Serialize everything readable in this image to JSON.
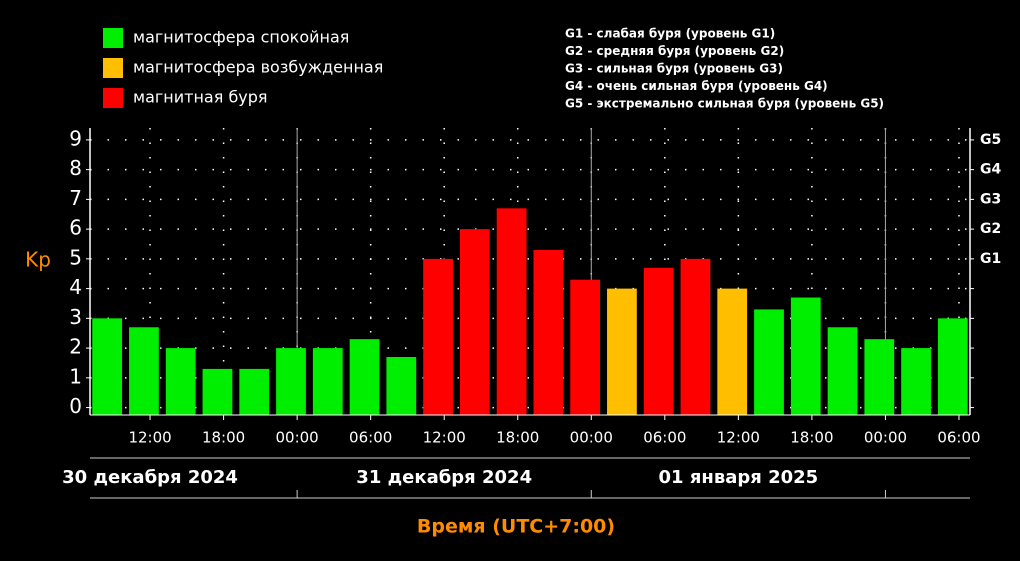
{
  "chart_data": {
    "type": "bar",
    "y_label": "Kp",
    "x_label": "Время (UTC+7:00)",
    "legend": [
      {
        "name": "магнитосфера спокойная",
        "color": "#00ee00"
      },
      {
        "name": "магнитосфера возбужденная",
        "color": "#ffbf00"
      },
      {
        "name": "магнитная буря",
        "color": "#ff0000"
      }
    ],
    "storm_levels": [
      "G1 - слабая буря (уровень G1)",
      "G2 - средняя буря (уровень G2)",
      "G3 - сильная буря (уровень G3)",
      "G4 - очень сильная буря (уровень G4)",
      "G5 - экстремально сильная буря (уровень G5)"
    ],
    "x": [
      -15.5,
      -12.5,
      -9.5,
      -6.5,
      -3.5,
      -0.5,
      2.5,
      5.5,
      8.5,
      11.5,
      14.5,
      17.5,
      20.5,
      23.5,
      26.5,
      29.5,
      32.5,
      35.5,
      38.5,
      41.5,
      44.5,
      47.5,
      50.5,
      53.5
    ],
    "values": [
      3,
      2.7,
      2,
      1.3,
      1.3,
      2,
      2,
      2.3,
      1.7,
      5,
      6,
      6.7,
      5.3,
      4.3,
      4,
      4.7,
      5,
      4,
      3.3,
      3.7,
      2.7,
      2.3,
      2,
      3
    ],
    "colors": [
      "#00ee00",
      "#00ee00",
      "#00ee00",
      "#00ee00",
      "#00ee00",
      "#00ee00",
      "#00ee00",
      "#00ee00",
      "#00ee00",
      "#ff0000",
      "#ff0000",
      "#ff0000",
      "#ff0000",
      "#ff0000",
      "#ffbf00",
      "#ff0000",
      "#ff0000",
      "#ffbf00",
      "#00ee00",
      "#00ee00",
      "#00ee00",
      "#00ee00",
      "#00ee00",
      "#00ee00"
    ],
    "xlim": [
      -16.9,
      54.9
    ],
    "xticks": [
      {
        "value": -12,
        "label": "12:00"
      },
      {
        "value": -6,
        "label": "18:00"
      },
      {
        "value": 0,
        "label": "00:00"
      },
      {
        "value": 6,
        "label": "06:00"
      },
      {
        "value": 12,
        "label": "12:00"
      },
      {
        "value": 18,
        "label": "18:00"
      },
      {
        "value": 24,
        "label": "00:00"
      },
      {
        "value": 30,
        "label": "06:00"
      },
      {
        "value": 36,
        "label": "12:00"
      },
      {
        "value": 42,
        "label": "18:00"
      },
      {
        "value": 48,
        "label": "00:00"
      },
      {
        "value": 54,
        "label": "06:00"
      }
    ],
    "day_lines": [
      0,
      24,
      48
    ],
    "days": [
      {
        "value": -12,
        "label": "30 декабря 2024"
      },
      {
        "value": 12,
        "label": "31 декабря 2024"
      },
      {
        "value": 36,
        "label": "01 января 2025"
      }
    ],
    "ylim": [
      -0.25,
      9.4
    ],
    "yticks": [
      0,
      1,
      2,
      3,
      4,
      5,
      6,
      7,
      8,
      9
    ],
    "y2ticks": [
      {
        "value": 5,
        "label": "G1"
      },
      {
        "value": 6,
        "label": "G2"
      },
      {
        "value": 7,
        "label": "G3"
      },
      {
        "value": 8,
        "label": "G4"
      },
      {
        "value": 9,
        "label": "G5"
      }
    ],
    "grid": true
  }
}
